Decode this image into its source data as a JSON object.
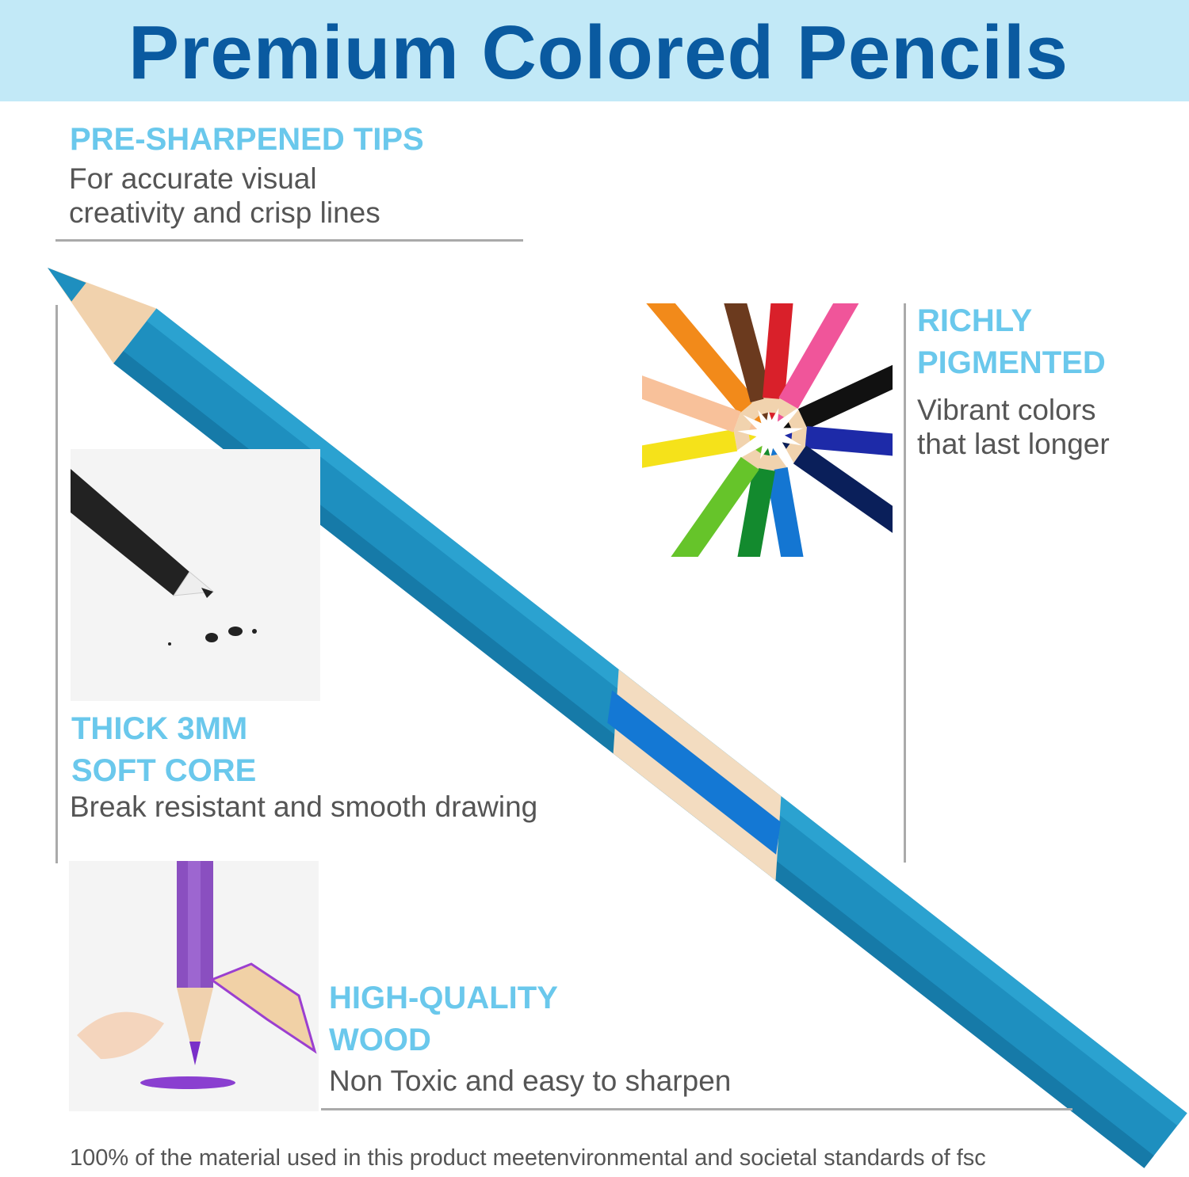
{
  "title": "Premium Colored Pencils",
  "features": [
    {
      "heading": "PRE-SHARPENED TIPS",
      "lines": [
        "For accurate visual",
        "creativity and crisp lines"
      ]
    },
    {
      "heading": [
        "RICHLY",
        "PIGMENTED"
      ],
      "lines": [
        "Vibrant colors",
        "that last longer"
      ]
    },
    {
      "heading": [
        "THICK 3MM",
        "SOFT CORE"
      ],
      "lines": [
        "Break resistant and smooth drawing"
      ]
    },
    {
      "heading": [
        "HIGH-QUALITY",
        "WOOD"
      ],
      "lines": [
        "Non Toxic and easy to sharpen"
      ]
    }
  ],
  "footer": "100% of the material used in this product meetenvironmental and societal standards of fsc",
  "colors": {
    "header_bg": "#c2e9f7",
    "title": "#0a5aa0",
    "heading": "#6ac8ec",
    "body_text": "#555555",
    "pencil": "#1e8fbf"
  }
}
